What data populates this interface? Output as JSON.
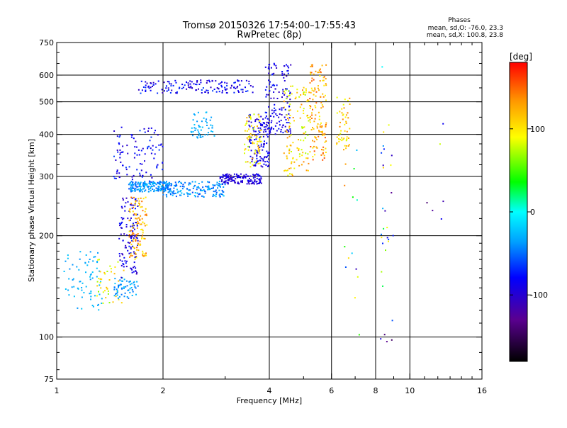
{
  "chart_data": {
    "type": "scatter",
    "title": "Tromsø 20150326 17:54:00–17:55:43",
    "subtitle": "RwPretec (8p)",
    "xlabel": "Frequency [MHz]",
    "ylabel": "Stationary phase Virtual Height [km]",
    "x_scale": "log",
    "y_scale": "log",
    "xlim": [
      1,
      16
    ],
    "ylim": [
      75,
      750
    ],
    "x_ticks": [
      1,
      2,
      4,
      6,
      8,
      10,
      16
    ],
    "x_tick_labels": [
      "1",
      "2",
      "4",
      "6",
      "8",
      "10",
      "16"
    ],
    "y_ticks": [
      75,
      100,
      200,
      300,
      400,
      500,
      600,
      750
    ],
    "y_tick_labels": [
      "75",
      "100",
      "200",
      "300",
      "400",
      "500",
      "600",
      "750"
    ],
    "grid": true,
    "stats": {
      "heading": "Phases",
      "line_o": "mean, sd,O: -76.0, 23.3",
      "line_x": "mean, sd,X: 100.8, 23.8"
    },
    "colorbar": {
      "label": "[deg]",
      "range": [
        -180,
        180
      ],
      "tick_values": [
        100,
        0,
        -100
      ],
      "tick_labels": [
        "100",
        "0",
        "-100"
      ],
      "colormap": "rainbow"
    },
    "point_groups": [
      {
        "f": [
          1.05,
          1.35
        ],
        "h": [
          120,
          180
        ],
        "phase": [
          -40,
          -20
        ],
        "n": 70
      },
      {
        "f": [
          1.3,
          1.55
        ],
        "h": [
          125,
          170
        ],
        "phase": [
          60,
          120
        ],
        "n": 40
      },
      {
        "f": [
          1.45,
          1.7
        ],
        "h": [
          130,
          150
        ],
        "phase": [
          -50,
          -20
        ],
        "n": 60
      },
      {
        "f": [
          1.5,
          1.7
        ],
        "h": [
          150,
          260
        ],
        "phase": [
          -110,
          -70
        ],
        "n": 120
      },
      {
        "f": [
          1.6,
          1.8
        ],
        "h": [
          170,
          260
        ],
        "phase": [
          90,
          150
        ],
        "n": 110
      },
      {
        "f": [
          1.45,
          2.0
        ],
        "h": [
          290,
          420
        ],
        "phase": [
          -110,
          -60
        ],
        "n": 100
      },
      {
        "f": [
          1.6,
          2.1
        ],
        "h": [
          270,
          290
        ],
        "phase": [
          -60,
          -20
        ],
        "n": 180
      },
      {
        "f": [
          2.0,
          3.0
        ],
        "h": [
          260,
          290
        ],
        "phase": [
          -60,
          -20
        ],
        "n": 160
      },
      {
        "f": [
          2.9,
          3.8
        ],
        "h": [
          285,
          305
        ],
        "phase": [
          -110,
          -80
        ],
        "n": 140
      },
      {
        "f": [
          1.7,
          3.6
        ],
        "h": [
          530,
          580
        ],
        "phase": [
          -110,
          -60
        ],
        "n": 150
      },
      {
        "f": [
          3.5,
          4.0
        ],
        "h": [
          320,
          460
        ],
        "phase": [
          -110,
          -70
        ],
        "n": 130
      },
      {
        "f": [
          3.9,
          4.6
        ],
        "h": [
          400,
          650
        ],
        "phase": [
          -110,
          -70
        ],
        "n": 140
      },
      {
        "f": [
          3.4,
          3.8
        ],
        "h": [
          320,
          460
        ],
        "phase": [
          70,
          130
        ],
        "n": 70
      },
      {
        "f": [
          4.4,
          5.2
        ],
        "h": [
          300,
          560
        ],
        "phase": [
          70,
          140
        ],
        "n": 120
      },
      {
        "f": [
          5.2,
          5.8
        ],
        "h": [
          330,
          650
        ],
        "phase": [
          90,
          160
        ],
        "n": 130
      },
      {
        "f": [
          2.4,
          2.8
        ],
        "h": [
          390,
          470
        ],
        "phase": [
          -40,
          -20
        ],
        "n": 50
      },
      {
        "f": [
          6.2,
          6.8
        ],
        "h": [
          360,
          520
        ],
        "phase": [
          80,
          140
        ],
        "n": 50
      },
      {
        "f": [
          8.2,
          9.0
        ],
        "h": [
          95,
          640
        ],
        "phase": [
          -150,
          150
        ],
        "n": 30
      },
      {
        "f": [
          6.5,
          7.2
        ],
        "h": [
          80,
          380
        ],
        "phase": [
          -150,
          150
        ],
        "n": 14
      },
      {
        "f": [
          11.0,
          12.5
        ],
        "h": [
          95,
          460
        ],
        "phase": [
          -150,
          150
        ],
        "n": 6
      }
    ]
  }
}
